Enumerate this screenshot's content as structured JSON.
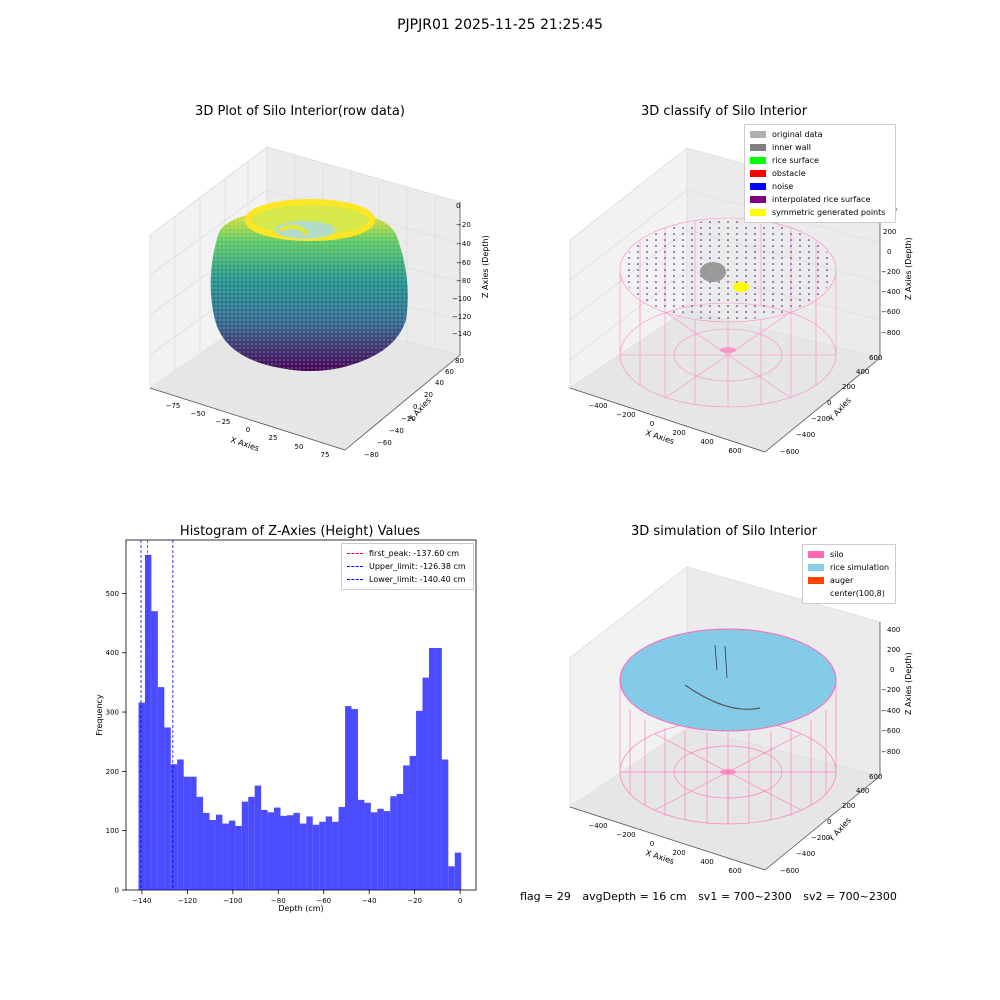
{
  "suptitle": "PJPJR01 2025-11-25 21:25:45",
  "panels": {
    "raw": {
      "title": "3D Plot of Silo Interior(row data)",
      "xlabel": "X Axies",
      "ylabel": "Y Axies",
      "zlabel": "Z Axies (Depth)",
      "xticks": [
        "−75",
        "−50",
        "−25",
        "0",
        "25",
        "50",
        "75"
      ],
      "yticks": [
        "−80",
        "−60",
        "−40",
        "−20",
        "0",
        "20",
        "40",
        "60",
        "80"
      ],
      "zticks": [
        "0",
        "−20",
        "−40",
        "−60",
        "−80",
        "−100",
        "−120",
        "−140"
      ]
    },
    "classify": {
      "title": "3D classify of Silo Interior",
      "xlabel": "X Axies",
      "ylabel": "Y Axies",
      "zlabel": "Z Axies (Depth)",
      "xticks": [
        "−400",
        "−200",
        "0",
        "200",
        "400",
        "600"
      ],
      "yticks": [
        "−600",
        "−400",
        "−200",
        "0",
        "200",
        "400",
        "600"
      ],
      "zticks": [
        "200",
        "0",
        "−200",
        "−400",
        "−600",
        "−800"
      ],
      "legend": [
        {
          "label": "original data",
          "color": "#b0b0b0"
        },
        {
          "label": "inner wall",
          "color": "#808080"
        },
        {
          "label": "rice surface",
          "color": "#00ff00"
        },
        {
          "label": "obstacle",
          "color": "#ff0000"
        },
        {
          "label": "noise",
          "color": "#0000ff"
        },
        {
          "label": "interpolated rice surface",
          "color": "#800080"
        },
        {
          "label": "symmetric generated points",
          "color": "#ffff00"
        }
      ],
      "zticks_partial_top": "00"
    },
    "simulation": {
      "title": "3D simulation of Silo Interior",
      "xlabel": "X Axies",
      "ylabel": "Y Axies",
      "zlabel": "Z Axies (Depth)",
      "xticks": [
        "−400",
        "−200",
        "0",
        "200",
        "400",
        "600"
      ],
      "yticks": [
        "−600",
        "−400",
        "−200",
        "0",
        "200",
        "400",
        "600"
      ],
      "zticks": [
        "400",
        "200",
        "0",
        "−200",
        "−400",
        "−600",
        "−800"
      ],
      "legend": [
        {
          "label": "silo",
          "color": "#ff69b4"
        },
        {
          "label": "rice simulation",
          "color": "#87ceeb"
        },
        {
          "label": "auger",
          "color": "#ff4500"
        },
        {
          "label": "center(100,8)",
          "color": "#ffffff"
        }
      ]
    }
  },
  "chart_data": {
    "type": "bar",
    "title": "Histogram of Z-Axies (Height) Values",
    "xlabel": "Depth (cm)",
    "ylabel": "Frequency",
    "xlim": [
      -147,
      7
    ],
    "ylim": [
      0,
      590
    ],
    "xticks": [
      "−140",
      "−120",
      "−100",
      "−80",
      "−60",
      "−40",
      "−20",
      "0"
    ],
    "xtick_values": [
      -140,
      -120,
      -100,
      -80,
      -60,
      -40,
      -20,
      0
    ],
    "yticks": [
      "0",
      "100",
      "200",
      "300",
      "400",
      "500"
    ],
    "ytick_values": [
      0,
      100,
      200,
      300,
      400,
      500
    ],
    "bar_color": "#0000ff",
    "bin_start": -141.5,
    "bin_width": 2.84,
    "values": [
      316,
      565,
      470,
      342,
      274,
      212,
      220,
      191,
      191,
      157,
      130,
      118,
      127,
      112,
      117,
      108,
      149,
      157,
      176,
      135,
      131,
      139,
      125,
      126,
      130,
      112,
      124,
      110,
      115,
      124,
      115,
      140,
      310,
      305,
      152,
      147,
      131,
      137,
      133,
      158,
      162,
      210,
      226,
      302,
      358,
      408,
      408,
      220,
      40,
      63
    ],
    "vlines": [
      {
        "label": "first_peak: -137.60 cm",
        "x": -137.6,
        "color": "#ff0000"
      },
      {
        "label": "Upper_limit: -126.38 cm",
        "x": -126.38,
        "color": "#0000ff"
      },
      {
        "label": "Lower_limit: -140.40 cm",
        "x": -140.4,
        "color": "#0000ff"
      }
    ],
    "legend_position": "top-right"
  },
  "footer": {
    "flag": "flag = 29",
    "avg": "avgDepth = 16 cm",
    "sv1": "sv1 = 700~2300",
    "sv2": "sv2 = 700~2300"
  }
}
